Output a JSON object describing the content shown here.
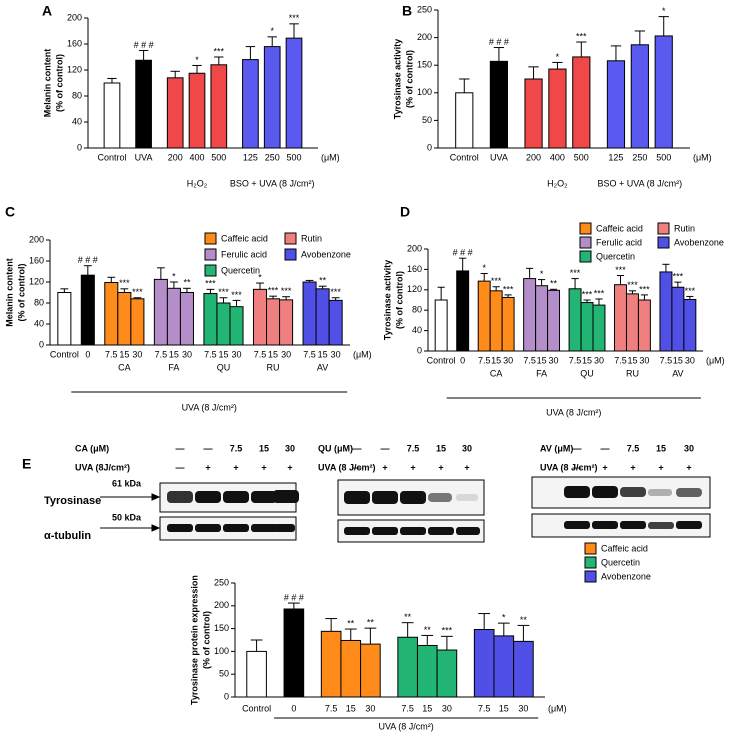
{
  "chart_data": [
    {
      "type": "bar",
      "panel": "A",
      "ylabel": [
        "Melanin content",
        "(% of control)"
      ],
      "ylim": [
        0,
        200
      ],
      "yticks": [
        0,
        40,
        80,
        120,
        160,
        200
      ],
      "unit": "(μM)",
      "groups": [
        {
          "categories": [
            "Control"
          ],
          "values": [
            100
          ],
          "errors": [
            7
          ],
          "annotations": [
            null
          ],
          "color": "#ffffff"
        },
        {
          "categories": [
            "UVA"
          ],
          "values": [
            135
          ],
          "errors": [
            15
          ],
          "annotations": [
            "# # #"
          ],
          "color": "#000000"
        },
        {
          "label": "H₂O₂",
          "categories": [
            "200",
            "400",
            "500"
          ],
          "values": [
            108,
            115,
            128
          ],
          "errors": [
            10,
            12,
            12
          ],
          "annotations": [
            null,
            "*",
            "***"
          ],
          "color": "#f04848"
        },
        {
          "label": "BSO + UVA (8 J/cm²)",
          "categories": [
            "125",
            "250",
            "500"
          ],
          "values": [
            136,
            156,
            169
          ],
          "errors": [
            20,
            15,
            22
          ],
          "annotations": [
            null,
            "*",
            "***"
          ],
          "color": "#5a5af0"
        }
      ]
    },
    {
      "type": "bar",
      "panel": "B",
      "ylabel": [
        "Tyrosinase activity",
        "(% of control)"
      ],
      "ylim": [
        0,
        250
      ],
      "yticks": [
        0,
        50,
        100,
        150,
        200,
        250
      ],
      "unit": "(μM)",
      "groups": [
        {
          "categories": [
            "Control"
          ],
          "values": [
            100
          ],
          "errors": [
            25
          ],
          "annotations": [
            null
          ],
          "color": "#ffffff"
        },
        {
          "categories": [
            "UVA"
          ],
          "values": [
            157
          ],
          "errors": [
            25
          ],
          "annotations": [
            "# # #"
          ],
          "color": "#000000"
        },
        {
          "label": "H₂O₂",
          "categories": [
            "200",
            "400",
            "500"
          ],
          "values": [
            125,
            143,
            165
          ],
          "errors": [
            22,
            12,
            27
          ],
          "annotations": [
            null,
            "*",
            "***"
          ],
          "color": "#f04848"
        },
        {
          "label": "BSO + UVA (8 J/cm²)",
          "categories": [
            "125",
            "250",
            "500"
          ],
          "values": [
            158,
            187,
            203
          ],
          "errors": [
            27,
            25,
            35
          ],
          "annotations": [
            null,
            null,
            "*"
          ],
          "color": "#5a5af0"
        }
      ]
    },
    {
      "type": "bar",
      "panel": "C",
      "ylabel": [
        "Melanin content",
        "(% of control)"
      ],
      "ylim": [
        0,
        200
      ],
      "yticks": [
        0,
        40,
        80,
        120,
        160,
        200
      ],
      "unit": "(μM)",
      "span_label": "UVA (8 J/cm²)",
      "groups": [
        {
          "categories": [
            "Control"
          ],
          "values": [
            100
          ],
          "errors": [
            7
          ],
          "annotations": [
            null
          ],
          "color": "#ffffff"
        },
        {
          "categories": [
            "0"
          ],
          "values": [
            133
          ],
          "errors": [
            18
          ],
          "annotations": [
            "# # #"
          ],
          "color": "#000000"
        },
        {
          "name": "Caffeic acid",
          "label": "CA",
          "categories": [
            "7.5",
            "15",
            "30"
          ],
          "values": [
            119,
            100,
            88
          ],
          "errors": [
            10,
            7,
            2
          ],
          "annotations": [
            null,
            "***",
            "***"
          ],
          "color": "#ff8c1a"
        },
        {
          "name": "Ferulic acid",
          "label": "FA",
          "categories": [
            "7.5",
            "15",
            "30"
          ],
          "values": [
            125,
            108,
            100
          ],
          "errors": [
            22,
            12,
            8
          ],
          "annotations": [
            null,
            "*",
            "**"
          ],
          "color": "#b48ec8"
        },
        {
          "name": "Quercetin",
          "label": "QU",
          "categories": [
            "7.5",
            "15",
            "30"
          ],
          "values": [
            98,
            80,
            73
          ],
          "errors": [
            8,
            10,
            12
          ],
          "annotations": [
            "***",
            "***",
            "***"
          ],
          "color": "#22b573"
        },
        {
          "name": "Rutin",
          "label": "RU",
          "categories": [
            "7.5",
            "15",
            "30"
          ],
          "values": [
            106,
            88,
            86
          ],
          "errors": [
            12,
            5,
            6
          ],
          "annotations": [
            "*",
            "***",
            "***"
          ],
          "color": "#f08080"
        },
        {
          "name": "Avobenzone",
          "label": "AV",
          "categories": [
            "7.5",
            "15",
            "30"
          ],
          "values": [
            120,
            107,
            85
          ],
          "errors": [
            3,
            5,
            5
          ],
          "annotations": [
            null,
            "**",
            "***"
          ],
          "color": "#5050e6"
        }
      ]
    },
    {
      "type": "bar",
      "panel": "D",
      "ylabel": [
        "Tyrosinase activity",
        "(% of control)"
      ],
      "ylim": [
        0,
        200
      ],
      "yticks": [
        0,
        40,
        80,
        120,
        160,
        200
      ],
      "unit": "(μM)",
      "span_label": "UVA (8 J/cm²)",
      "groups": [
        {
          "categories": [
            "Control"
          ],
          "values": [
            100
          ],
          "errors": [
            25
          ],
          "annotations": [
            null
          ],
          "color": "#ffffff"
        },
        {
          "categories": [
            "0"
          ],
          "values": [
            157
          ],
          "errors": [
            25
          ],
          "annotations": [
            "# # #"
          ],
          "color": "#000000"
        },
        {
          "name": "Caffeic acid",
          "label": "CA",
          "categories": [
            "7.5",
            "15",
            "30"
          ],
          "values": [
            137,
            118,
            105
          ],
          "errors": [
            15,
            8,
            5
          ],
          "annotations": [
            "*",
            "***",
            "***"
          ],
          "color": "#ff8c1a"
        },
        {
          "name": "Ferulic acid",
          "label": "FA",
          "categories": [
            "7.5",
            "15",
            "30"
          ],
          "values": [
            142,
            128,
            119
          ],
          "errors": [
            20,
            12,
            2
          ],
          "annotations": [
            null,
            "*",
            "**"
          ],
          "color": "#b48ec8"
        },
        {
          "name": "Quercetin",
          "label": "QU",
          "categories": [
            "7.5",
            "15",
            "30"
          ],
          "values": [
            122,
            95,
            90
          ],
          "errors": [
            20,
            5,
            12
          ],
          "annotations": [
            "***",
            "***",
            "***"
          ],
          "color": "#22b573"
        },
        {
          "name": "Rutin",
          "label": "RU",
          "categories": [
            "7.5",
            "15",
            "30"
          ],
          "values": [
            130,
            112,
            100
          ],
          "errors": [
            18,
            6,
            10
          ],
          "annotations": [
            "***",
            "***",
            "***"
          ],
          "color": "#f08080"
        },
        {
          "name": "Avobenzone",
          "label": "AV",
          "categories": [
            "7.5",
            "15",
            "30"
          ],
          "values": [
            155,
            125,
            101
          ],
          "errors": [
            15,
            10,
            6
          ],
          "annotations": [
            null,
            "***",
            "***"
          ],
          "color": "#5050e6"
        }
      ]
    },
    {
      "type": "bar",
      "panel": "E",
      "ylabel": [
        "Tyrosinase protein expression",
        "(% of control)"
      ],
      "ylim": [
        0,
        250
      ],
      "yticks": [
        0,
        50,
        100,
        150,
        200,
        250
      ],
      "unit": "(μM)",
      "span_label": "UVA (8 J/cm²)",
      "groups": [
        {
          "categories": [
            "Control"
          ],
          "values": [
            100
          ],
          "errors": [
            25
          ],
          "annotations": [
            null
          ],
          "color": "#ffffff"
        },
        {
          "categories": [
            "0"
          ],
          "values": [
            193
          ],
          "errors": [
            13
          ],
          "annotations": [
            "# # #"
          ],
          "color": "#000000"
        },
        {
          "name": "Caffeic acid",
          "categories": [
            "7.5",
            "15",
            "30"
          ],
          "values": [
            144,
            124,
            116
          ],
          "errors": [
            28,
            25,
            35
          ],
          "annotations": [
            null,
            "**",
            "**"
          ],
          "color": "#ff8c1a"
        },
        {
          "name": "Quercetin",
          "categories": [
            "7.5",
            "15",
            "30"
          ],
          "values": [
            131,
            113,
            103
          ],
          "errors": [
            32,
            22,
            30
          ],
          "annotations": [
            "**",
            "**",
            "***"
          ],
          "color": "#22b573"
        },
        {
          "name": "Avobenzone",
          "categories": [
            "7.5",
            "15",
            "30"
          ],
          "values": [
            148,
            134,
            122
          ],
          "errors": [
            35,
            28,
            35
          ],
          "annotations": [
            null,
            "*",
            "**"
          ],
          "color": "#5050e6"
        }
      ]
    }
  ],
  "blots": [
    {
      "header_rows": [
        {
          "label": "CA (μM)",
          "values": [
            "—",
            "—",
            "7.5",
            "15",
            "30"
          ]
        },
        {
          "label": "UVA (8J/cm²)",
          "values": [
            "—",
            "+",
            "+",
            "+",
            "+"
          ]
        }
      ],
      "bands": [
        {
          "label": "Tyrosinase",
          "size": "61 kDa"
        },
        {
          "label": "α-tubulin",
          "size": "50 kDa"
        }
      ]
    },
    {
      "header_rows": [
        {
          "label": "QU (μM)",
          "values": [
            "—",
            "—",
            "7.5",
            "15",
            "30"
          ]
        },
        {
          "label": "UVA (8 J/cm²)",
          "values": [
            "—",
            "+",
            "+",
            "+",
            "+"
          ]
        }
      ]
    },
    {
      "header_rows": [
        {
          "label": "AV (μM)",
          "values": [
            "—",
            "—",
            "7.5",
            "15",
            "30"
          ]
        },
        {
          "label": "UVA (8 J/cm²)",
          "values": [
            "—",
            "+",
            "+",
            "+",
            "+"
          ]
        }
      ]
    }
  ]
}
